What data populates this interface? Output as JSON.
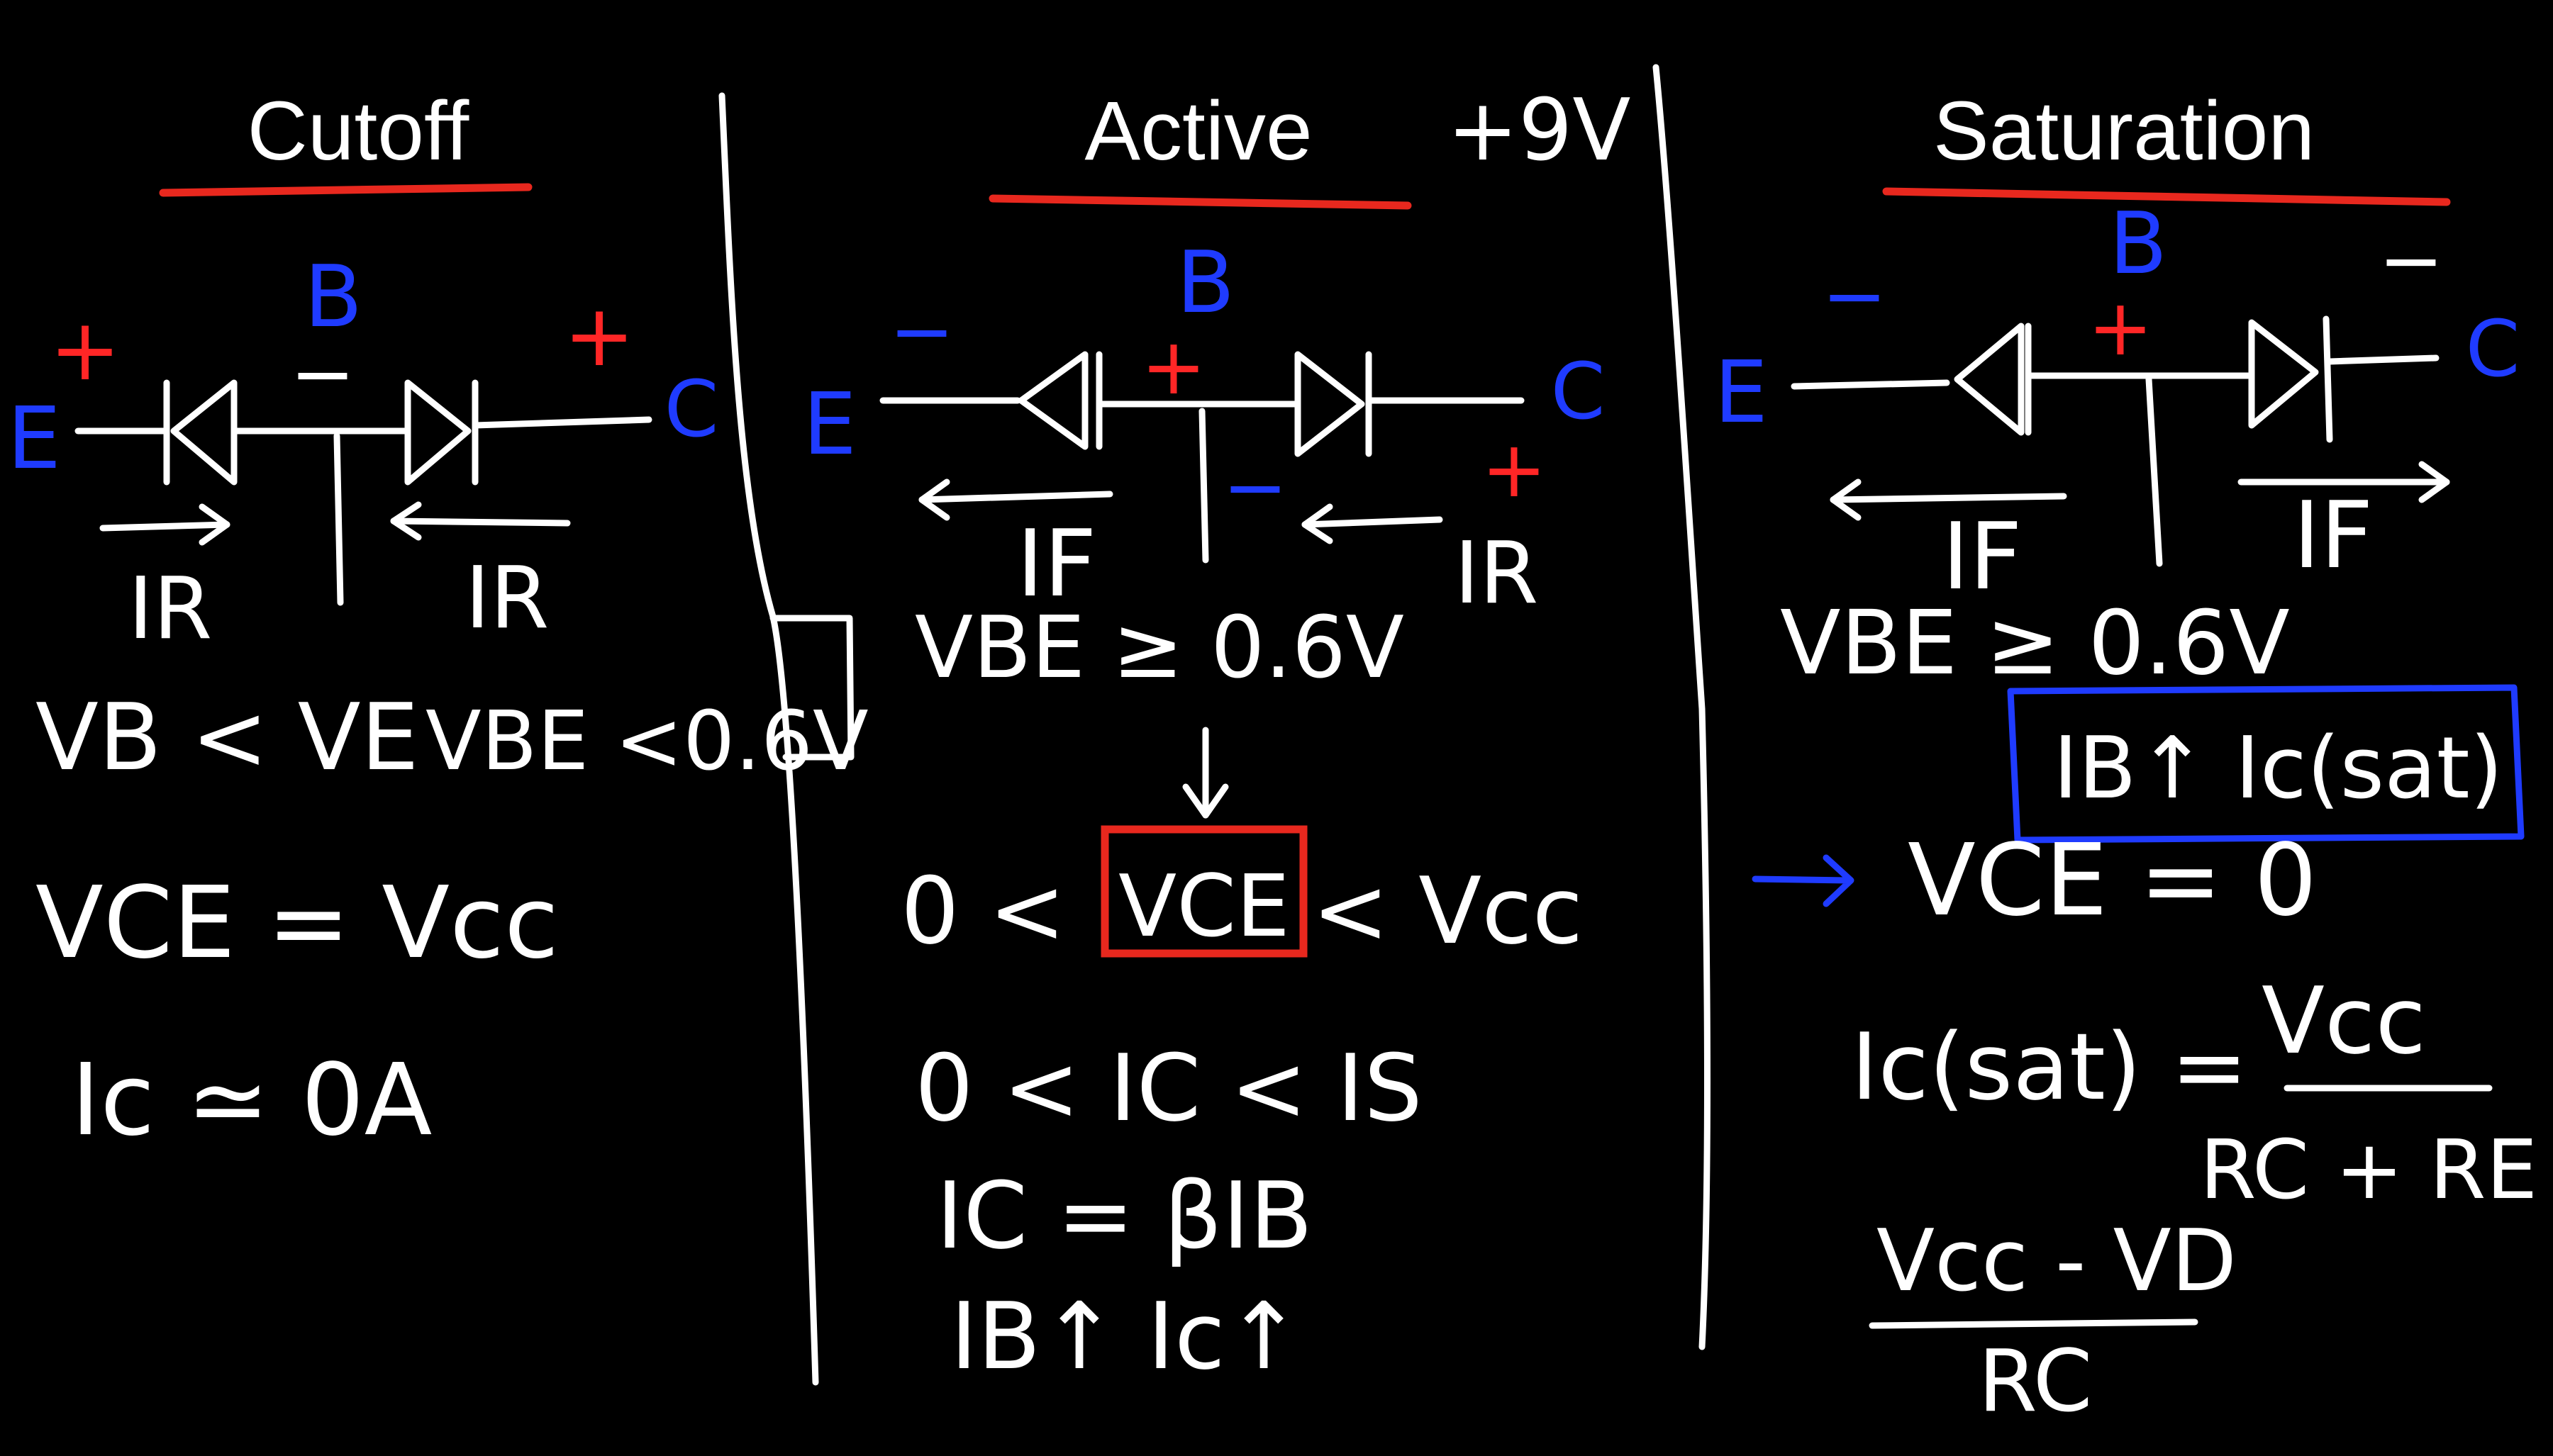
{
  "colors": {
    "background": "#000000",
    "ink": "#ffffff",
    "accent_red": "#ff2626",
    "accent_blue": "#1f3bff"
  },
  "cutoff": {
    "title": "Cutoff",
    "label_b": "B",
    "label_e": "E",
    "label_c": "C",
    "plus_left": "+",
    "plus_right": "+",
    "minus_base": "−",
    "ir_left": "IR",
    "ir_right": "IR",
    "eq1": "VB < VE",
    "eq_vbe": "VBE <0.6V",
    "eq2": "VCE = Vcc",
    "eq3": "Ic ≃ 0A"
  },
  "active": {
    "title": "Active",
    "supply": "+9V",
    "label_b": "B",
    "label_e": "E",
    "label_c": "C",
    "minus_left": "−",
    "plus_base": "+",
    "minus_base": "−",
    "plus_right": "+",
    "if_label": "IF",
    "ir_label": "IR",
    "eq1": "VBE ≥ 0.6V",
    "eq2_left": "0 <",
    "eq2_box": "VCE",
    "eq2_right": "< Vcc",
    "eq3": "0 < IC < IS",
    "eq4": "IC = βIB",
    "eq5": "IB↑ Ic↑"
  },
  "saturation": {
    "title": "Saturation",
    "label_b": "B",
    "label_e": "E",
    "label_c": "C",
    "minus_left": "−",
    "plus_base": "+",
    "minus_right": "−",
    "if_left": "IF",
    "if_right": "IF",
    "eq1": "VBE ≥ 0.6V",
    "boxed": "IB↑ Ic(sat)",
    "eq2": "VCE = 0",
    "eq3_left": "Ic(sat) =",
    "eq3_num": "Vcc",
    "eq3_den": "RC + RE",
    "eq4_num": "Vcc - VD",
    "eq4_den": "RC"
  }
}
